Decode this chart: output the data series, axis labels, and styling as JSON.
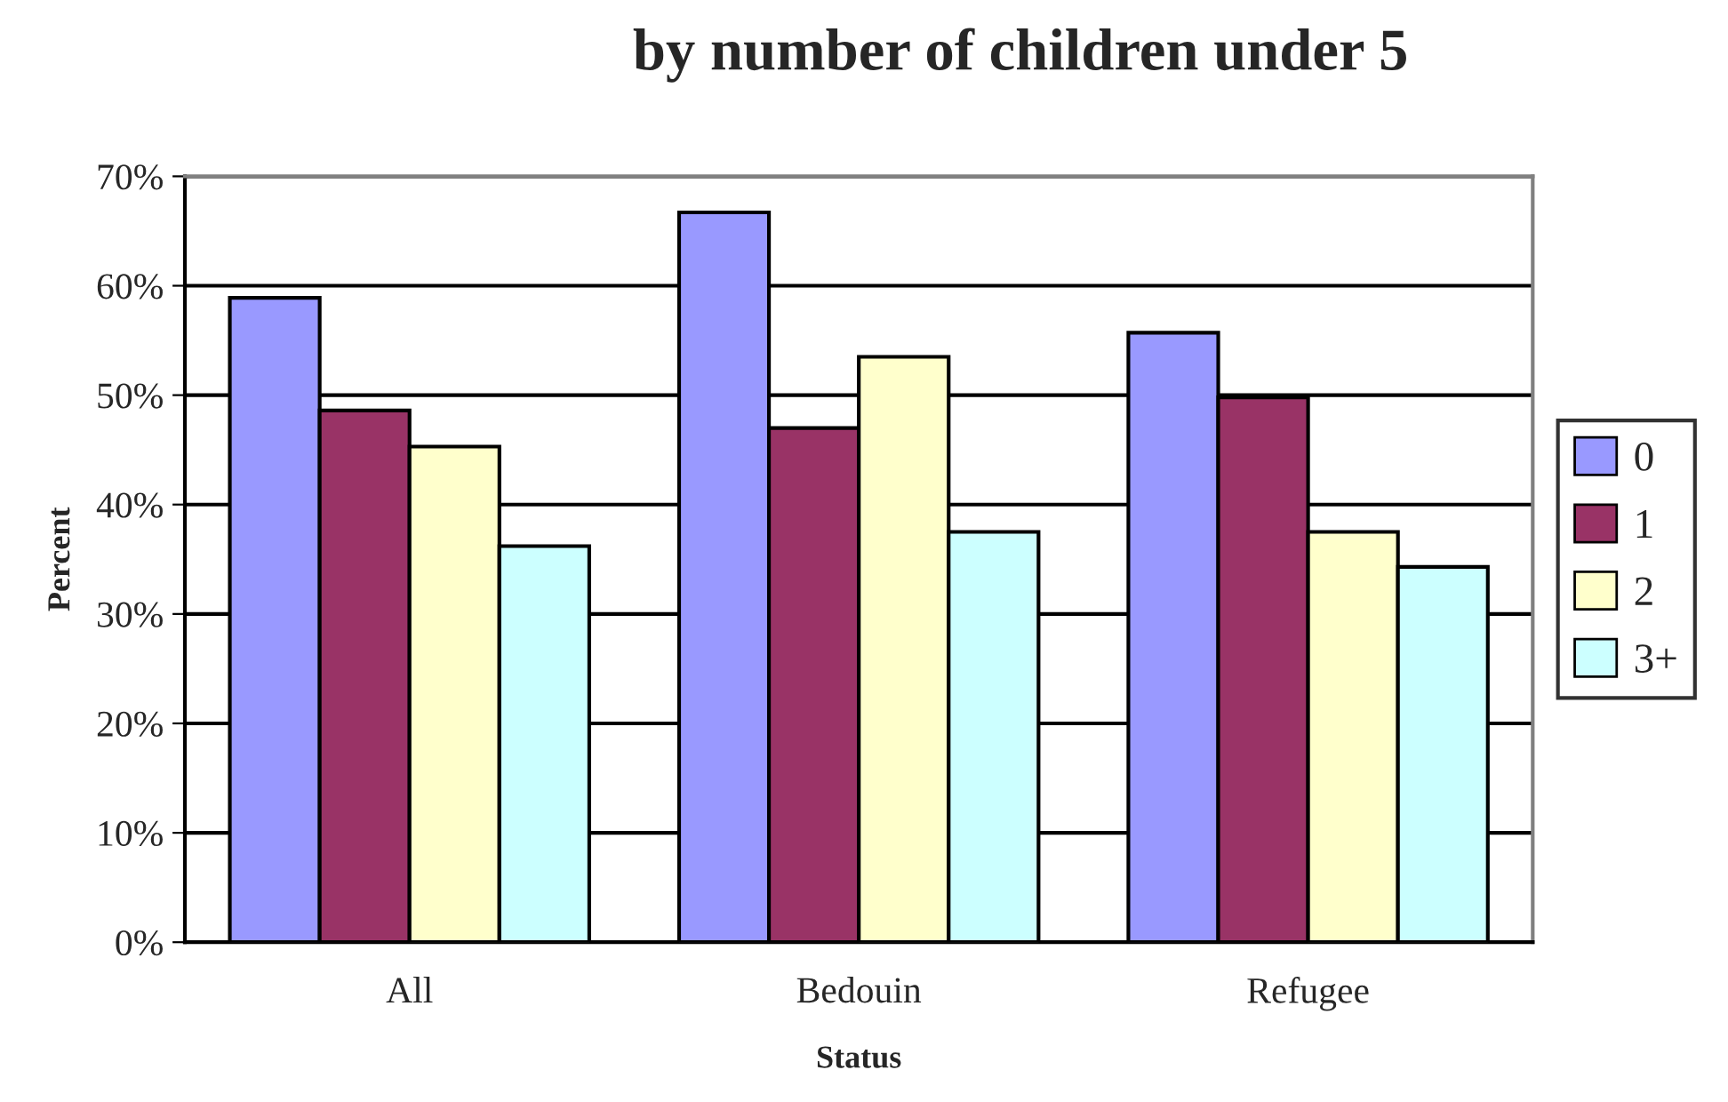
{
  "chart_data": {
    "type": "bar",
    "title": "by number of children under 5",
    "xlabel": "Status",
    "ylabel": "Percent",
    "categories": [
      "All",
      "Bedouin",
      "Refugee"
    ],
    "series": [
      {
        "name": "0",
        "color": "#9999ff",
        "values": [
          58.9,
          66.7,
          55.7
        ]
      },
      {
        "name": "1",
        "color": "#993366",
        "values": [
          48.6,
          47.0,
          49.8
        ]
      },
      {
        "name": "2",
        "color": "#ffffcc",
        "values": [
          45.3,
          53.5,
          37.5
        ]
      },
      {
        "name": "3+",
        "color": "#ccffff",
        "values": [
          36.2,
          37.5,
          34.3
        ]
      }
    ],
    "ylim": [
      0,
      70
    ],
    "yticks": [
      {
        "value": 0,
        "label": "0%"
      },
      {
        "value": 10,
        "label": "10%"
      },
      {
        "value": 20,
        "label": "20%"
      },
      {
        "value": 30,
        "label": "30%"
      },
      {
        "value": 40,
        "label": "40%"
      },
      {
        "value": 50,
        "label": "50%"
      },
      {
        "value": 60,
        "label": "60%"
      },
      {
        "value": 70,
        "label": "70%"
      }
    ],
    "grid": "y",
    "legend": "right"
  }
}
